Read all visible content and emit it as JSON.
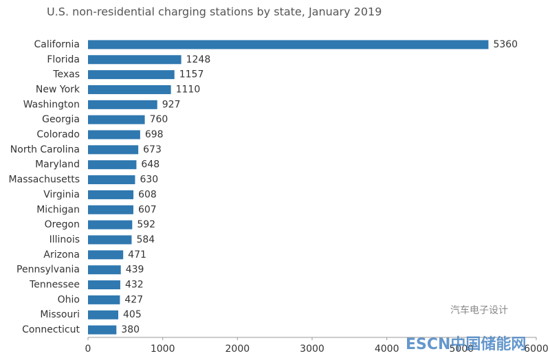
{
  "chart_data": {
    "type": "hbar",
    "title": "U.S. non-residential charging stations by state, January 2019",
    "categories": [
      "California",
      "Florida",
      "Texas",
      "New York",
      "Washington",
      "Georgia",
      "Colorado",
      "North Carolina",
      "Maryland",
      "Massachusetts",
      "Virginia",
      "Michigan",
      "Oregon",
      "Illinois",
      "Arizona",
      "Pennsylvania",
      "Tennessee",
      "Ohio",
      "Missouri",
      "Connecticut"
    ],
    "values": [
      5360,
      1248,
      1157,
      1110,
      927,
      760,
      698,
      673,
      648,
      630,
      608,
      607,
      592,
      584,
      471,
      439,
      432,
      427,
      405,
      380
    ],
    "color": "#2f78b0",
    "xlim": [
      0,
      6000
    ],
    "xticks": [
      0,
      1000,
      2000,
      3000,
      4000,
      5000,
      6000
    ]
  },
  "watermarks": [
    "汽车电子设计",
    "ESCN中国储能网"
  ]
}
